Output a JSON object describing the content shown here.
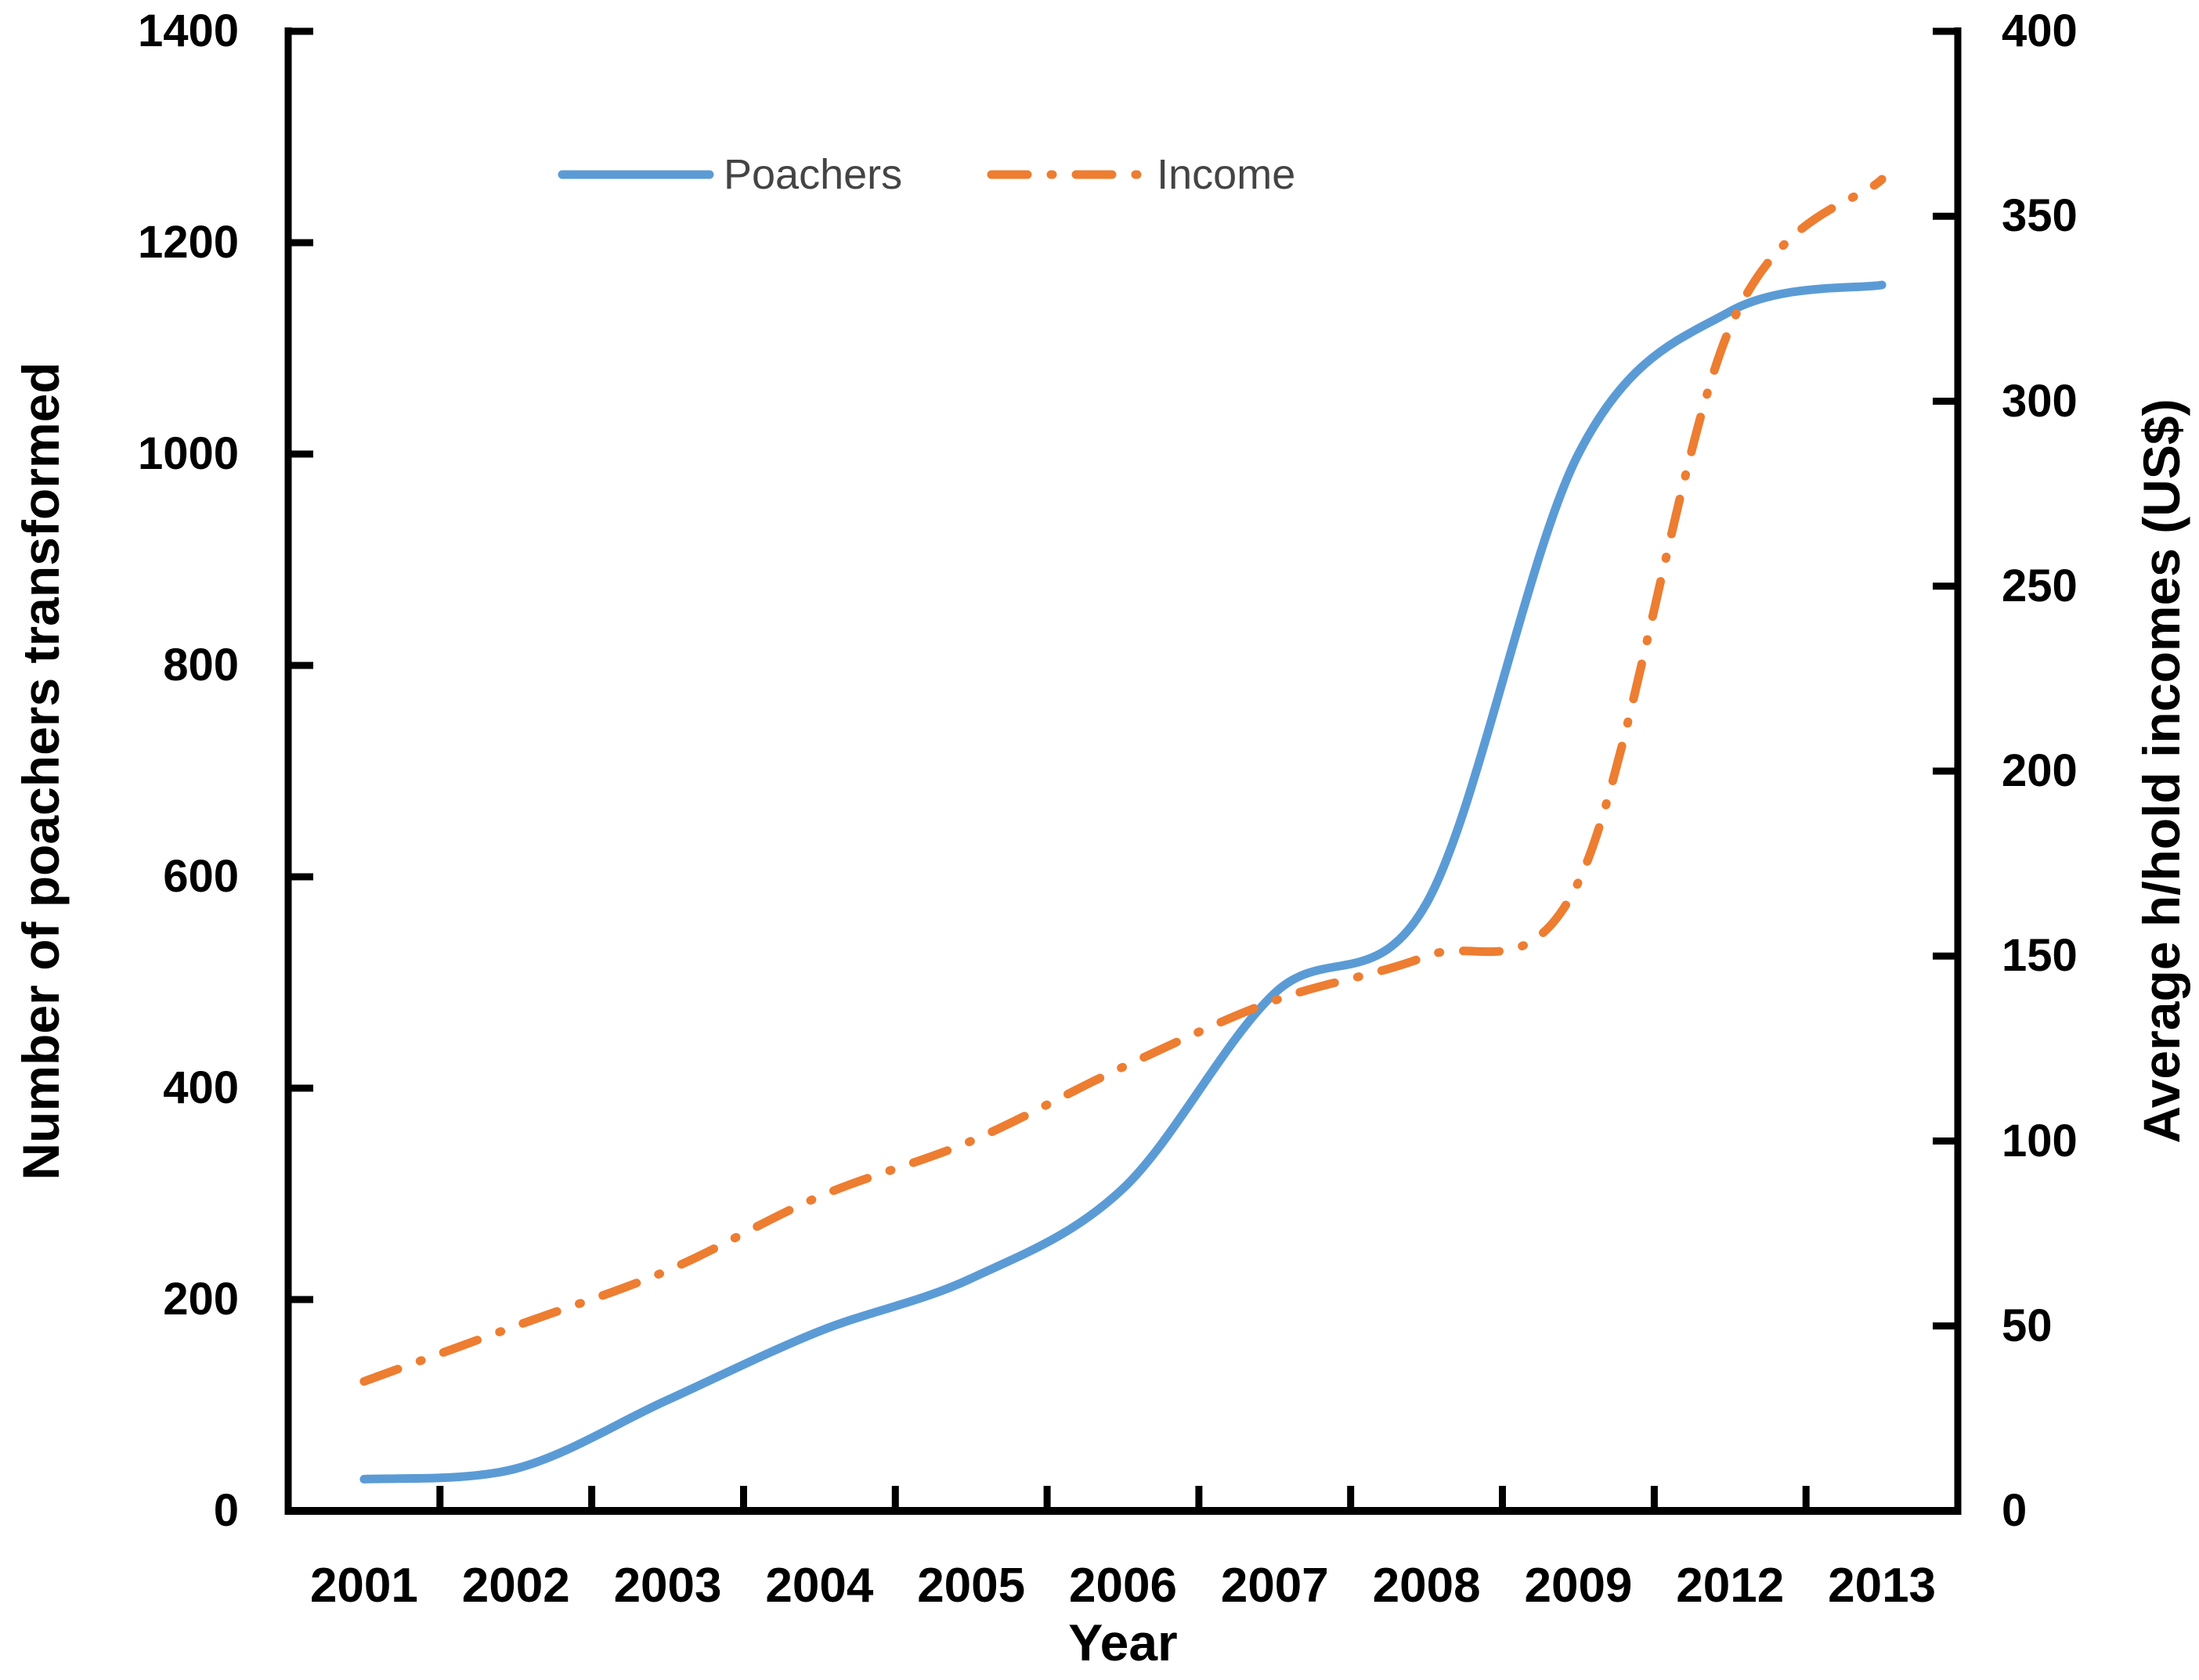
{
  "chart_data": {
    "type": "line",
    "title": "",
    "xlabel": "Year",
    "ylabel_left": "Number of poachers transformed",
    "ylabel_right": "Average h/hold incomes (US$)",
    "categories": [
      "2001",
      "2002",
      "2003",
      "2004",
      "2005",
      "2006",
      "2007",
      "2008",
      "2009",
      "2012",
      "2013"
    ],
    "series": [
      {
        "name": "Poachers",
        "axis": "left",
        "color": "#5B9BD5",
        "line_style": "solid",
        "values": [
          30,
          40,
          105,
          170,
          220,
          305,
          490,
          575,
          1000,
          1135,
          1160
        ]
      },
      {
        "name": "Income",
        "axis": "right",
        "color": "#ED7D31",
        "line_style": "dash-dot",
        "values": [
          35,
          50,
          65,
          85,
          100,
          120,
          138,
          150,
          170,
          320,
          360
        ]
      }
    ],
    "ylim_left": [
      0,
      1400
    ],
    "ylim_right": [
      0,
      400
    ],
    "yticks_left": [
      0,
      200,
      400,
      600,
      800,
      1000,
      1200,
      1400
    ],
    "yticks_right": [
      0,
      50,
      100,
      150,
      200,
      250,
      300,
      350,
      400
    ],
    "grid": false,
    "legend_position": "top-center",
    "axis_color": "#000000",
    "legend_text_color": "#444444"
  }
}
